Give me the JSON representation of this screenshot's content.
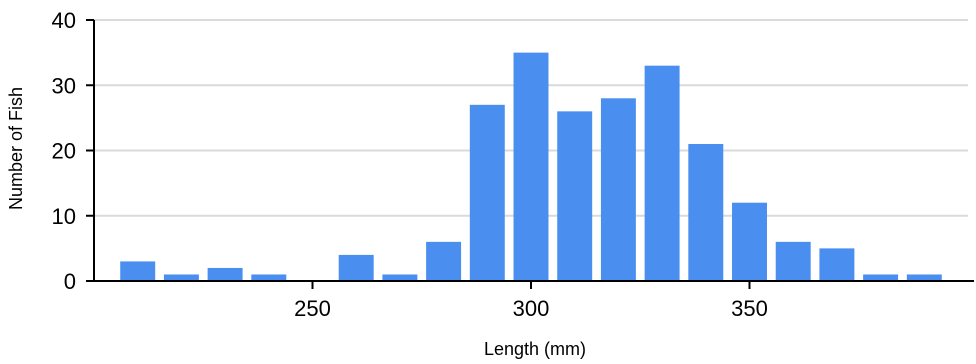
{
  "chart_data": {
    "type": "bar",
    "title": "",
    "xlabel": "Length (mm)",
    "ylabel": "Number of Fish",
    "x": [
      210,
      220,
      230,
      240,
      250,
      260,
      270,
      280,
      290,
      300,
      310,
      320,
      330,
      340,
      350,
      360,
      370,
      380,
      390
    ],
    "values": [
      3,
      1,
      2,
      1,
      0,
      4,
      1,
      6,
      27,
      35,
      26,
      28,
      33,
      21,
      12,
      6,
      5,
      1,
      1
    ],
    "xlim": [
      200,
      400
    ],
    "ylim": [
      0,
      40
    ],
    "x_ticks": [
      250,
      300,
      350
    ],
    "y_ticks": [
      0,
      10,
      20,
      30,
      40
    ],
    "grid": true,
    "legend": "none",
    "bar_color": "#4A8FF0",
    "grid_color": "#DADADA",
    "axis_color": "#000000"
  }
}
